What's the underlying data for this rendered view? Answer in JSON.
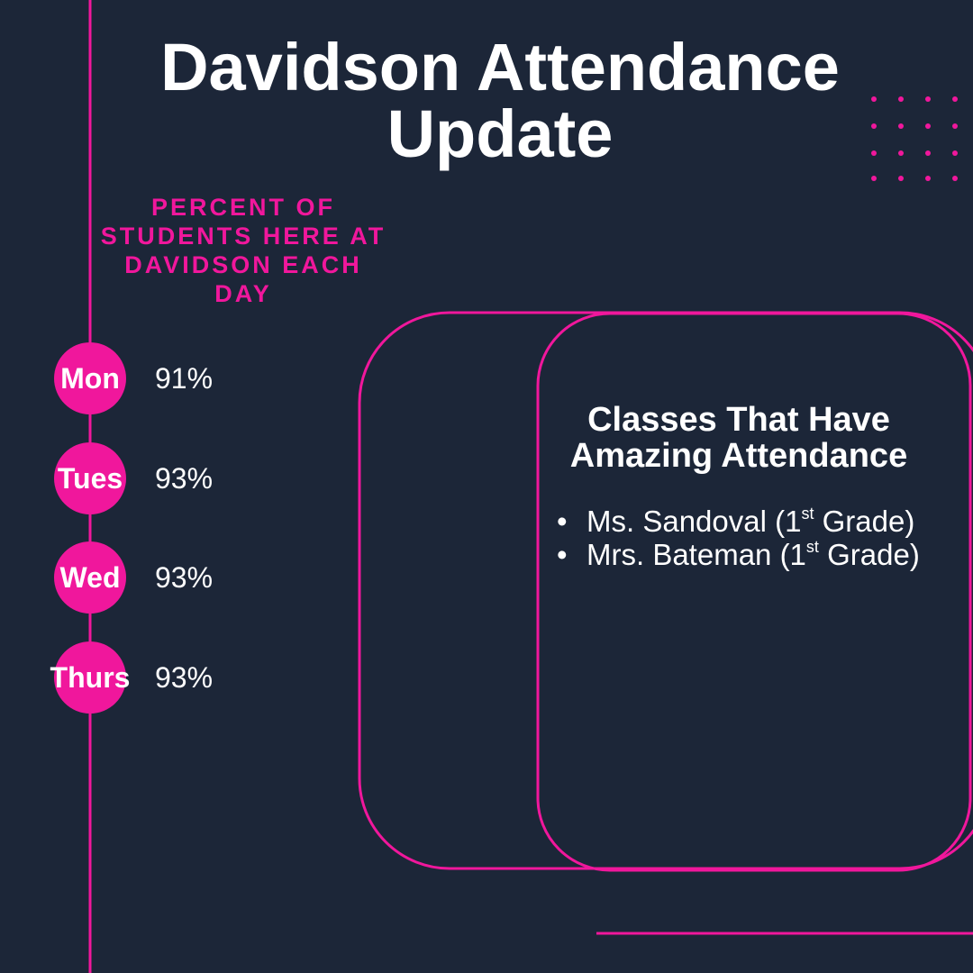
{
  "title": "Davidson Attendance Update",
  "subtitle": "PERCENT OF STUDENTS HERE AT DAVIDSON EACH DAY",
  "days": [
    {
      "day": "Mon",
      "percent": "91%"
    },
    {
      "day": "Tues",
      "percent": "93%"
    },
    {
      "day": "Wed",
      "percent": "93%"
    },
    {
      "day": "Thurs",
      "percent": "93%"
    }
  ],
  "classes": {
    "heading": "Classes That Have Amazing Attendance",
    "items": [
      {
        "before": "Ms. Sandoval (1",
        "sup": "st",
        "after": " Grade)"
      },
      {
        "before": "Mrs. Bateman (1",
        "sup": "st",
        "after": " Grade)"
      }
    ]
  }
}
